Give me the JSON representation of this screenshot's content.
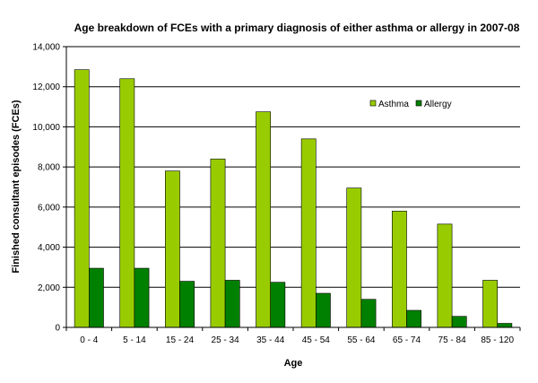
{
  "chart_data": {
    "type": "bar",
    "title": "Age breakdown of FCEs with a primary diagnosis of either asthma or allergy in 2007-08",
    "xlabel": "Age",
    "ylabel": "Finished consultant episodes (FCEs)",
    "categories": [
      "0 - 4",
      "5 - 14",
      "15 - 24",
      "25 - 34",
      "35 - 44",
      "45 - 54",
      "55 - 64",
      "65 - 74",
      "75 - 84",
      "85 - 120"
    ],
    "series": [
      {
        "name": "Asthma",
        "color": "#99cc00",
        "values": [
          12850,
          12400,
          7800,
          8400,
          10750,
          9400,
          6950,
          5800,
          5150,
          2350
        ]
      },
      {
        "name": "Allergy",
        "color": "#008000",
        "values": [
          2950,
          2950,
          2300,
          2350,
          2250,
          1700,
          1400,
          850,
          550,
          200
        ]
      }
    ],
    "ylim": [
      0,
      14000
    ],
    "yticks": [
      0,
      2000,
      4000,
      6000,
      8000,
      10000,
      12000,
      14000
    ],
    "ytick_labels": [
      "0",
      "2,000",
      "4,000",
      "6,000",
      "8,000",
      "10,000",
      "12,000",
      "14,000"
    ],
    "grid": true,
    "legend_position": "top-right"
  }
}
